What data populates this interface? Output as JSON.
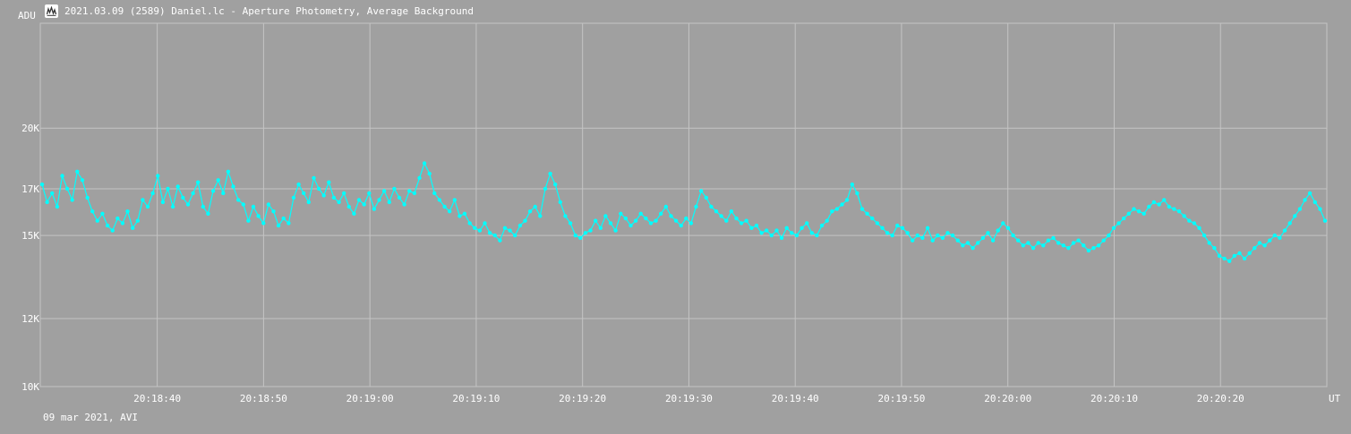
{
  "window": {
    "title": "2021.03.09 (2589) Daniel.lc - Aperture Photometry, Average Background",
    "icon": "lightcurve-app-icon"
  },
  "footer": {
    "text": "09 mar 2021, AVI"
  },
  "colors": {
    "background": "#a0a0a0",
    "grid": "#c4c4c4",
    "series": "#00ffff",
    "text": "#ffffff"
  },
  "chart_data": {
    "type": "line",
    "ylabel": "ADU",
    "xlabel": "UT",
    "y_scale": "log",
    "ylim": [
      10000,
      26500
    ],
    "yticks": [
      {
        "value": 10000,
        "label": "10K"
      },
      {
        "value": 12000,
        "label": "12K"
      },
      {
        "value": 15000,
        "label": "15K"
      },
      {
        "value": 17000,
        "label": "17K"
      },
      {
        "value": 20000,
        "label": "20K"
      }
    ],
    "xlim": [
      "20:18:29",
      "20:20:30"
    ],
    "xticks": [
      "20:18:40",
      "20:18:50",
      "20:19:00",
      "20:19:10",
      "20:19:20",
      "20:19:30",
      "20:19:40",
      "20:19:50",
      "20:20:00",
      "20:20:10",
      "20:20:20"
    ],
    "grid": true,
    "markers": true,
    "series": [
      {
        "values_approx": [
          17200,
          16400,
          16800,
          16200,
          17600,
          17000,
          16500,
          17800,
          17400,
          16600,
          16000,
          15600,
          15900,
          15400,
          15200,
          15700,
          15500,
          16000,
          15300,
          15600,
          16500,
          16200,
          16800,
          17600,
          16400,
          17000,
          16200,
          17100,
          16600,
          16300,
          16800,
          17300,
          16200,
          15900,
          16900,
          17400,
          16800,
          17800,
          17100,
          16500,
          16300,
          15600,
          16200,
          15800,
          15500,
          16300,
          16000,
          15400,
          15700,
          15500,
          16600,
          17200,
          16800,
          16400,
          17500,
          17000,
          16700,
          17300,
          16600,
          16400,
          16800,
          16200,
          15900,
          16500,
          16300,
          16800,
          16100,
          16500,
          16900,
          16400,
          17000,
          16600,
          16300,
          16900,
          16800,
          17500,
          18200,
          17700,
          16800,
          16500,
          16200,
          16000,
          16500,
          15800,
          15900,
          15500,
          15300,
          15200,
          15500,
          15100,
          15000,
          14800,
          15300,
          15200,
          15000,
          15400,
          15600,
          16000,
          16200,
          15800,
          17000,
          17700,
          17200,
          16400,
          15800,
          15500,
          15000,
          14900,
          15100,
          15200,
          15600,
          15300,
          15800,
          15500,
          15200,
          15900,
          15700,
          15400,
          15600,
          15900,
          15700,
          15500,
          15600,
          15900,
          16200,
          15800,
          15600,
          15400,
          15700,
          15500,
          16200,
          16900,
          16600,
          16200,
          16000,
          15800,
          15600,
          16000,
          15700,
          15500,
          15600,
          15300,
          15400,
          15100,
          15200,
          15000,
          15200,
          14900,
          15300,
          15100,
          15000,
          15300,
          15500,
          15100,
          15000,
          15400,
          15600,
          16000,
          16100,
          16300,
          16500,
          17200,
          16800,
          16100,
          15900,
          15700,
          15500,
          15300,
          15100,
          15000,
          15400,
          15300,
          15100,
          14800,
          15000,
          14900,
          15300,
          14800,
          15000,
          14900,
          15100,
          15000,
          14800,
          14600,
          14700,
          14500,
          14700,
          14900,
          15100,
          14800,
          15200,
          15500,
          15300,
          15000,
          14800,
          14600,
          14700,
          14500,
          14700,
          14600,
          14800,
          14900,
          14700,
          14600,
          14500,
          14700,
          14800,
          14600,
          14400,
          14500,
          14600,
          14800,
          15000,
          15300,
          15500,
          15700,
          15900,
          16100,
          16000,
          15900,
          16200,
          16400,
          16300,
          16500,
          16200,
          16100,
          16000,
          15800,
          15600,
          15500,
          15300,
          15000,
          14700,
          14500,
          14200,
          14100,
          14000,
          14200,
          14300,
          14100,
          14300,
          14500,
          14700,
          14600,
          14800,
          15000,
          14900,
          15200,
          15500,
          15800,
          16100,
          16500,
          16800,
          16400,
          16100,
          15600
        ]
      }
    ]
  }
}
